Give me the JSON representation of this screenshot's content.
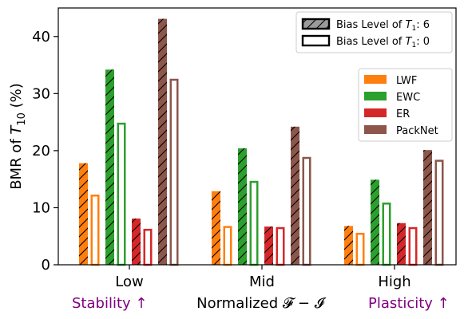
{
  "chart_data": {
    "type": "bar",
    "categories": [
      "Low",
      "Mid",
      "High"
    ],
    "xlabel": "Normalized 𝓕 − 𝓘",
    "ylabel_main": "BMR of ",
    "ylabel_T": "T",
    "ylabel_sub": "10",
    "ylabel_tail": " (%)",
    "ylim": [
      0,
      45
    ],
    "yticks": [
      0,
      10,
      20,
      30,
      40
    ],
    "left_note": "Stability ↑",
    "right_note": "Plasticity ↑",
    "bias_legend": [
      {
        "prefix": "Bias Level of ",
        "T": "T",
        "sub": "1",
        "suffix": ": 6",
        "style": "hatched"
      },
      {
        "prefix": "Bias Level of ",
        "T": "T",
        "sub": "1",
        "suffix": ": 0",
        "style": "hollow"
      }
    ],
    "series": [
      {
        "name": "LWF",
        "color": "#ff7f0e",
        "bias6": [
          17.8,
          12.9,
          6.8
        ],
        "bias0": [
          12.3,
          6.8,
          5.6
        ]
      },
      {
        "name": "EWC",
        "color": "#2ca02c",
        "bias6": [
          34.2,
          20.4,
          14.9
        ],
        "bias0": [
          24.9,
          14.7,
          10.9
        ]
      },
      {
        "name": "ER",
        "color": "#d62728",
        "bias6": [
          8.1,
          6.7,
          7.3
        ],
        "bias0": [
          6.3,
          6.6,
          6.6
        ]
      },
      {
        "name": "PackNet",
        "color": "#8c564b",
        "bias6": [
          43.1,
          24.2,
          20.1
        ],
        "bias0": [
          32.6,
          18.9,
          18.4
        ]
      }
    ],
    "grid": false
  }
}
